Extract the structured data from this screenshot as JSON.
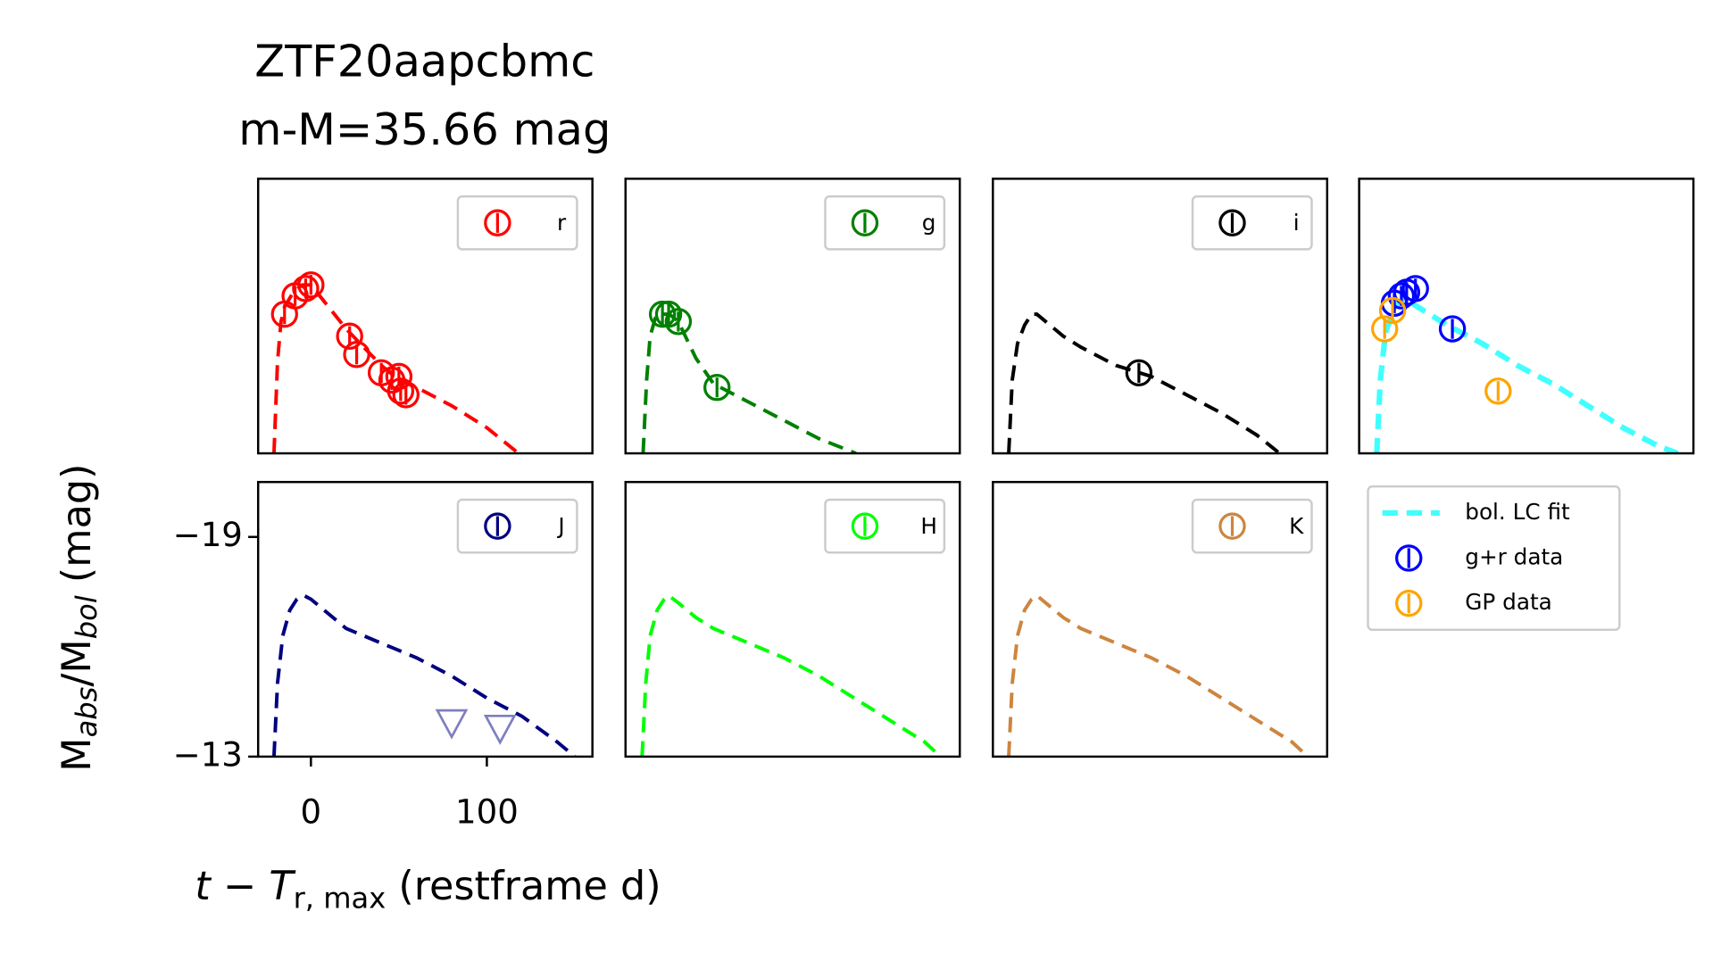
{
  "chart_data": {
    "type": "line",
    "title": "ZTF20aapcbmc",
    "subtitle": "m-M=35.66 mag",
    "y_label": [
      "M",
      "abs",
      "/M",
      "bol",
      " (mag)"
    ],
    "x_label": [
      "t − T",
      "r, max",
      " (restframe d)"
    ],
    "xlim": [
      -30,
      160
    ],
    "ylim": [
      -13,
      -20.5
    ],
    "xticks": [
      0,
      100
    ],
    "yticks": [
      {
        "value": -19,
        "label": "−19"
      },
      {
        "value": -13,
        "label": "−13"
      }
    ],
    "panels": [
      {
        "band": "r",
        "color": "#ff0000",
        "legend": "upper right",
        "model": {
          "x": [
            -21,
            -19,
            -17,
            -15,
            -10,
            -5,
            0,
            10,
            20,
            30,
            40,
            50,
            60,
            80,
            100,
            118
          ],
          "values": [
            -13,
            -15.5,
            -16.6,
            -17,
            -17.4,
            -17.6,
            -17.6,
            -17,
            -16.4,
            -15.9,
            -15.4,
            -15.0,
            -14.8,
            -14.3,
            -13.7,
            -13.0
          ]
        },
        "detections": {
          "x": [
            -15,
            -9,
            -3,
            0,
            22,
            26,
            40,
            46,
            50,
            51,
            54
          ],
          "values": [
            -16.8,
            -17.3,
            -17.5,
            -17.6,
            -16.2,
            -15.7,
            -15.2,
            -15.0,
            -15.1,
            -14.7,
            -14.6
          ]
        }
      },
      {
        "band": "g",
        "color": "#008000",
        "legend": "upper right",
        "model": {
          "x": [
            -20,
            -18,
            -16,
            -13,
            -10,
            -5,
            0,
            10,
            20,
            40,
            60,
            80,
            101
          ],
          "values": [
            -13,
            -15,
            -16.2,
            -16.7,
            -16.8,
            -16.8,
            -16.6,
            -15.6,
            -14.9,
            -14.4,
            -13.9,
            -13.4,
            -13
          ]
        },
        "detections": {
          "x": [
            -9,
            -5.5,
            0,
            22
          ],
          "values": [
            -16.8,
            -16.8,
            -16.6,
            -14.8
          ]
        }
      },
      {
        "band": "i",
        "color": "#000000",
        "legend": "upper right",
        "model": {
          "x": [
            -21,
            -19,
            -16,
            -12,
            -8,
            -5,
            0,
            10,
            20,
            40,
            60,
            80,
            100,
            120,
            133
          ],
          "values": [
            -13,
            -15,
            -16,
            -16.5,
            -16.8,
            -16.8,
            -16.6,
            -16.2,
            -15.9,
            -15.4,
            -15.1,
            -14.6,
            -14.1,
            -13.5,
            -13
          ]
        },
        "detections": {
          "x": [
            53
          ],
          "values": [
            -15.2
          ]
        }
      },
      {
        "legend": "outside lower",
        "series": [
          {
            "name": "bol. LC fit",
            "color": "#00ffff",
            "style": "dashed",
            "x": [
              -20,
              -18,
              -15,
              -10,
              -5,
              -3,
              0,
              10,
              20,
              40,
              60,
              80,
              100,
              120,
              140,
              151
            ],
            "values": [
              -13,
              -15,
              -16.3,
              -17,
              -17.2,
              -17.2,
              -17.1,
              -16.8,
              -16.5,
              -16.0,
              -15.4,
              -14.9,
              -14.3,
              -13.7,
              -13.2,
              -13.0
            ]
          },
          {
            "name": "g+r data",
            "color": "#0000ff",
            "style": "circle",
            "x": [
              -10,
              -6,
              -3,
              2,
              23
            ],
            "values": [
              -17.1,
              -17.3,
              -17.4,
              -17.5,
              -16.4
            ]
          },
          {
            "name": "GP data",
            "color": "#ffa500",
            "style": "circle",
            "x": [
              -15.5,
              -11,
              49
            ],
            "values": [
              -16.4,
              -16.9,
              -14.7
            ]
          }
        ]
      },
      {
        "band": "J",
        "color": "#000080",
        "limit_color": "#7f7fbf",
        "legend": "upper right",
        "model": {
          "x": [
            -21,
            -19,
            -16,
            -12,
            -8,
            -4,
            0,
            10,
            20,
            40,
            60,
            80,
            100,
            120,
            140,
            150
          ],
          "values": [
            -13,
            -15,
            -16.3,
            -17,
            -17.3,
            -17.4,
            -17.3,
            -16.9,
            -16.5,
            -16.1,
            -15.7,
            -15.2,
            -14.6,
            -14.1,
            -13.4,
            -13.0
          ]
        },
        "upper_limits": {
          "x": [
            80,
            107.5
          ],
          "values": [
            -13.9,
            -13.75
          ]
        }
      },
      {
        "band": "H",
        "color": "#00ff00",
        "legend": "upper right",
        "model": {
          "x": [
            -20.6,
            -18.5,
            -16,
            -12,
            -8,
            -5.5,
            0,
            10,
            20,
            40,
            60,
            80,
            100,
            120,
            140,
            149
          ],
          "values": [
            -13,
            -15,
            -16.3,
            -17,
            -17.3,
            -17.4,
            -17.2,
            -16.8,
            -16.5,
            -16.1,
            -15.7,
            -15.2,
            -14.6,
            -14.0,
            -13.4,
            -13.0
          ]
        }
      },
      {
        "band": "K",
        "color": "#cd853f",
        "legend": "upper right",
        "model": {
          "x": [
            -21,
            -19,
            -16,
            -12,
            -8,
            -5,
            0,
            10,
            20,
            40,
            60,
            80,
            100,
            120,
            140,
            149
          ],
          "values": [
            -13,
            -15,
            -16.3,
            -17,
            -17.3,
            -17.4,
            -17.2,
            -16.8,
            -16.5,
            -16.1,
            -15.7,
            -15.2,
            -14.6,
            -14.0,
            -13.4,
            -13.0
          ]
        }
      }
    ]
  }
}
